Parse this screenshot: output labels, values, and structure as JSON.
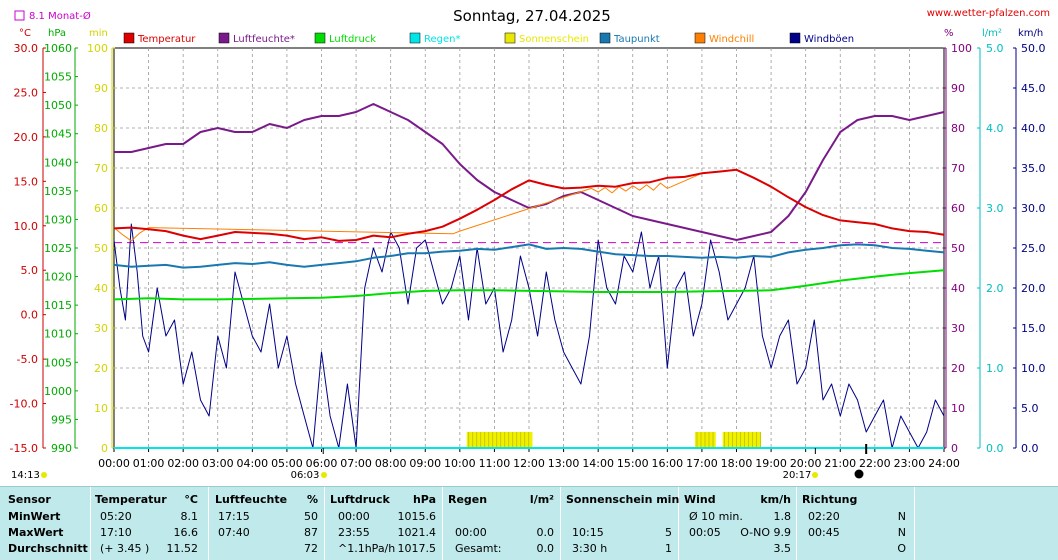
{
  "title": "Sonntag, 27.04.2025",
  "site": "www.wetter-pfalzen.com",
  "monat_label": "8.1 Monat-Ø",
  "axis_units": {
    "temp": "°C",
    "press": "hPa",
    "sun": "min",
    "hum": "%",
    "rain": "l/m²",
    "wind": "km/h"
  },
  "legend": [
    {
      "name": "Temperatur",
      "color": "#dd0000"
    },
    {
      "name": "Luftfeuchte*",
      "color": "#7a1a8a"
    },
    {
      "name": "Luftdruck",
      "color": "#00dd00"
    },
    {
      "name": "Regen*",
      "color": "#00e5e5"
    },
    {
      "name": "Sonnenschein",
      "color": "#e8e800"
    },
    {
      "name": "Taupunkt",
      "color": "#1a78b0"
    },
    {
      "name": "Windchill",
      "color": "#ff7f00"
    },
    {
      "name": "Windböen",
      "color": "#000088"
    }
  ],
  "sun_times": {
    "sunrise": "06:03",
    "sunset": "20:17",
    "now": "14:13"
  },
  "chart_data": {
    "type": "line",
    "x_range": [
      "00:00",
      "24:00"
    ],
    "x_ticks": [
      "00:00",
      "01:00",
      "02:00",
      "03:00",
      "04:00",
      "05:00",
      "06:00",
      "07:00",
      "08:00",
      "09:00",
      "10:00",
      "11:00",
      "12:00",
      "13:00",
      "14:00",
      "15:00",
      "16:00",
      "17:00",
      "18:00",
      "19:00",
      "20:00",
      "21:00",
      "22:00",
      "23:00",
      "24:00"
    ],
    "axes": {
      "temp": {
        "range": [
          -15,
          30
        ],
        "ticks": [
          "30.0",
          "25.0",
          "20.0",
          "15.0",
          "10.0",
          "5.0",
          "0.0",
          "-5.0",
          "-10.0",
          "-15.0"
        ]
      },
      "press": {
        "range": [
          990,
          1060
        ],
        "ticks": [
          "1060",
          "1055",
          "1050",
          "1045",
          "1040",
          "1035",
          "1030",
          "1025",
          "1020",
          "1015",
          "1010",
          "1005",
          "1000",
          "995",
          "990"
        ]
      },
      "sun": {
        "range": [
          0,
          100
        ],
        "ticks": [
          "100",
          "90",
          "80",
          "70",
          "60",
          "50",
          "40",
          "30",
          "20",
          "10",
          "0"
        ]
      },
      "hum": {
        "range": [
          0,
          100
        ],
        "ticks": [
          "100",
          "90",
          "80",
          "70",
          "60",
          "50",
          "40",
          "30",
          "20",
          "10",
          "0"
        ]
      },
      "rain": {
        "range": [
          0,
          5
        ],
        "ticks": [
          "5.0",
          "4.0",
          "3.0",
          "2.0",
          "1.0",
          "0.0"
        ]
      },
      "wind": {
        "range": [
          0,
          50
        ],
        "ticks": [
          "50.0",
          "45.0",
          "40.0",
          "35.0",
          "30.0",
          "25.0",
          "20.0",
          "15.0",
          "10.0",
          "5.0",
          "0.0"
        ]
      }
    },
    "monthly_avg_temp": 8.1,
    "series": [
      {
        "name": "Temperatur",
        "axis": "temp",
        "x": [
          0,
          0.5,
          1,
          1.5,
          2,
          2.5,
          3,
          3.5,
          4,
          4.5,
          5,
          5.5,
          6,
          6.5,
          7,
          7.5,
          8,
          8.5,
          9,
          9.5,
          10,
          10.5,
          11,
          11.5,
          12,
          12.5,
          13,
          13.5,
          14,
          14.5,
          15,
          15.5,
          16,
          16.5,
          17,
          17.5,
          18,
          18.5,
          19,
          19.5,
          20,
          20.5,
          21,
          21.5,
          22,
          22.5,
          23,
          23.5,
          24
        ],
        "y": [
          9.7,
          9.8,
          9.6,
          9.4,
          8.9,
          8.5,
          8.9,
          9.3,
          9.2,
          9.1,
          8.9,
          8.5,
          8.7,
          8.3,
          8.4,
          8.9,
          8.7,
          9.1,
          9.4,
          9.9,
          10.8,
          11.8,
          12.9,
          14.1,
          15.1,
          14.6,
          14.2,
          14.3,
          14.5,
          14.4,
          14.8,
          14.9,
          15.4,
          15.5,
          15.9,
          16.1,
          16.3,
          15.4,
          14.4,
          13.2,
          12.1,
          11.2,
          10.6,
          10.4,
          10.2,
          9.7,
          9.4,
          9.3,
          9.0
        ]
      },
      {
        "name": "Luftfeuchte*",
        "axis": "hum",
        "x": [
          0,
          0.5,
          1,
          1.5,
          2,
          2.5,
          3,
          3.5,
          4,
          4.5,
          5,
          5.5,
          6,
          6.5,
          7,
          7.5,
          8,
          8.5,
          9,
          9.5,
          10,
          10.5,
          11,
          11.5,
          12,
          12.5,
          13,
          13.5,
          14,
          14.5,
          15,
          15.5,
          16,
          16.5,
          17,
          17.5,
          18,
          18.5,
          19,
          19.5,
          20,
          20.5,
          21,
          21.5,
          22,
          22.5,
          23,
          23.5,
          24
        ],
        "y": [
          74,
          74,
          75,
          76,
          76,
          79,
          80,
          79,
          79,
          81,
          80,
          82,
          83,
          83,
          84,
          86,
          84,
          82,
          79,
          76,
          71,
          67,
          64,
          62,
          60,
          61,
          63,
          64,
          62,
          60,
          58,
          57,
          56,
          55,
          54,
          53,
          52,
          53,
          54,
          58,
          64,
          72,
          79,
          82,
          83,
          83,
          82,
          83,
          84
        ]
      },
      {
        "name": "Luftdruck",
        "axis": "press",
        "x": [
          0,
          1,
          2,
          3,
          4,
          5,
          6,
          7,
          8,
          9,
          10,
          11,
          12,
          13,
          14,
          15,
          16,
          17,
          18,
          19,
          20,
          21,
          22,
          23,
          24
        ],
        "y": [
          1016.0,
          1016.2,
          1016.0,
          1016.0,
          1016.1,
          1016.2,
          1016.3,
          1016.6,
          1017.1,
          1017.5,
          1017.6,
          1017.6,
          1017.5,
          1017.4,
          1017.3,
          1017.3,
          1017.3,
          1017.4,
          1017.5,
          1017.6,
          1018.4,
          1019.3,
          1020.0,
          1020.6,
          1021.1
        ]
      },
      {
        "name": "Regen*",
        "axis": "rain",
        "x": [
          0,
          24
        ],
        "y": [
          0,
          0
        ]
      },
      {
        "name": "Taupunkt",
        "axis": "temp",
        "x": [
          0,
          0.5,
          1,
          1.5,
          2,
          2.5,
          3,
          3.5,
          4,
          4.5,
          5,
          5.5,
          6,
          6.5,
          7,
          7.5,
          8,
          8.5,
          9,
          9.5,
          10,
          10.5,
          11,
          11.5,
          12,
          12.5,
          13,
          13.5,
          14,
          14.5,
          15,
          15.5,
          16,
          16.5,
          17,
          17.5,
          18,
          18.5,
          19,
          19.5,
          20,
          20.5,
          21,
          21.5,
          22,
          22.5,
          23,
          23.5,
          24
        ],
        "y": [
          5.6,
          5.4,
          5.5,
          5.6,
          5.3,
          5.4,
          5.6,
          5.8,
          5.7,
          5.9,
          5.6,
          5.4,
          5.6,
          5.8,
          6.0,
          6.4,
          6.6,
          6.9,
          6.9,
          7.1,
          7.2,
          7.4,
          7.3,
          7.6,
          7.9,
          7.4,
          7.5,
          7.4,
          7.1,
          6.8,
          6.7,
          6.6,
          6.6,
          6.5,
          6.4,
          6.5,
          6.4,
          6.6,
          6.5,
          7.0,
          7.3,
          7.5,
          7.8,
          7.9,
          7.8,
          7.5,
          7.4,
          7.2,
          7.0
        ]
      },
      {
        "name": "Windchill",
        "axis": "temp",
        "x": [
          0,
          0.25,
          0.5,
          0.75,
          1,
          9.8,
          10,
          13.8,
          14,
          14.2,
          14.4,
          14.6,
          14.8,
          15,
          15.2,
          15.4,
          15.6,
          15.8,
          16,
          17
        ],
        "y": [
          9.8,
          9.0,
          8.3,
          9.2,
          9.8,
          9.1,
          9.4,
          14.2,
          13.8,
          14.3,
          13.7,
          14.4,
          13.9,
          14.5,
          14.0,
          14.6,
          14.0,
          14.8,
          14.2,
          15.9
        ]
      },
      {
        "name": "Windböen",
        "axis": "wind",
        "x": [
          0,
          0.17,
          0.33,
          0.5,
          0.67,
          0.83,
          1,
          1.25,
          1.5,
          1.75,
          2,
          2.25,
          2.5,
          2.75,
          3,
          3.25,
          3.5,
          3.75,
          4,
          4.25,
          4.5,
          4.75,
          5,
          5.25,
          5.5,
          5.75,
          6,
          6.25,
          6.5,
          6.75,
          7,
          7.25,
          7.5,
          7.75,
          8,
          8.25,
          8.5,
          8.75,
          9,
          9.25,
          9.5,
          9.75,
          10,
          10.25,
          10.5,
          10.75,
          11,
          11.25,
          11.5,
          11.75,
          12,
          12.25,
          12.5,
          12.75,
          13,
          13.25,
          13.5,
          13.75,
          14,
          14.25,
          14.5,
          14.75,
          15,
          15.25,
          15.5,
          15.75,
          16,
          16.25,
          16.5,
          16.75,
          17,
          17.25,
          17.5,
          17.75,
          18,
          18.25,
          18.5,
          18.75,
          19,
          19.25,
          19.5,
          19.75,
          20,
          20.25,
          20.5,
          20.75,
          21,
          21.25,
          21.5,
          21.75,
          22,
          22.25,
          22.5,
          22.75,
          23,
          23.25,
          23.5,
          23.75,
          24
        ],
        "y": [
          26,
          20,
          16,
          28,
          22,
          14,
          12,
          20,
          14,
          16,
          8,
          12,
          6,
          4,
          14,
          10,
          22,
          18,
          14,
          12,
          18,
          10,
          14,
          8,
          4,
          0,
          12,
          4,
          0,
          8,
          0,
          20,
          25,
          22,
          27,
          25,
          18,
          25,
          26,
          22,
          18,
          20,
          24,
          16,
          25,
          18,
          20,
          12,
          16,
          24,
          20,
          14,
          22,
          16,
          12,
          10,
          8,
          14,
          26,
          20,
          18,
          24,
          22,
          27,
          20,
          24,
          10,
          20,
          22,
          14,
          18,
          26,
          22,
          16,
          18,
          20,
          24,
          14,
          10,
          14,
          16,
          8,
          10,
          16,
          6,
          8,
          4,
          8,
          6,
          2,
          4,
          6,
          0,
          4,
          2,
          0,
          2,
          6,
          4
        ]
      }
    ],
    "sunshine_blocks": [
      [
        10.2,
        12.1
      ],
      [
        16.8,
        17.4
      ],
      [
        17.6,
        18.7
      ]
    ]
  },
  "table": {
    "headers": [
      {
        "label": "Sensor",
        "unit": ""
      },
      {
        "label": "Temperatur",
        "unit": "°C"
      },
      {
        "label": "Luftfeuchte",
        "unit": "%"
      },
      {
        "label": "Luftdruck",
        "unit": "hPa"
      },
      {
        "label": "Regen",
        "unit": "l/m²"
      },
      {
        "label": "Sonnenschein min",
        "unit": ""
      },
      {
        "label": "Wind",
        "unit": "km/h"
      },
      {
        "label": "Richtung",
        "unit": ""
      }
    ],
    "rows": [
      {
        "label": "MinWert",
        "c": [
          "05:20",
          "8.1",
          "17:15",
          "50",
          "00:00",
          "1015.6",
          "",
          "",
          "",
          "",
          "Ø 10 min.",
          "1.8",
          "02:20",
          "N"
        ]
      },
      {
        "label": "MaxWert",
        "c": [
          "17:10",
          "16.6",
          "07:40",
          "87",
          "23:55",
          "1021.4",
          "00:00",
          "0.0",
          "10:15",
          "5",
          "00:05",
          "O-NO 9.9",
          "00:45",
          "N"
        ]
      },
      {
        "label": "Durchschnitt",
        "c": [
          "(+ 3.45 )",
          "11.52",
          "",
          "72",
          "^1.1hPa/h",
          "1017.5",
          "Gesamt:",
          "0.0",
          "3:30 h",
          "1",
          "",
          "3.5",
          "",
          "O"
        ]
      }
    ]
  }
}
